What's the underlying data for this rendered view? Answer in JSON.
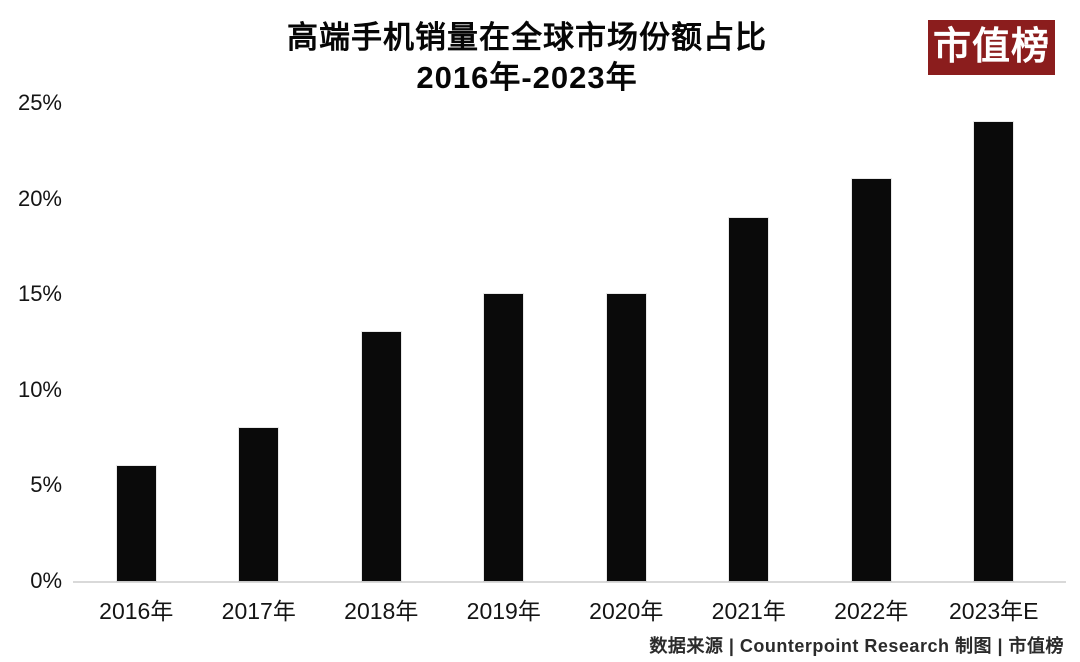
{
  "title": {
    "line1": "高端手机销量在全球市场份额占比",
    "line2": "2016年-2023年"
  },
  "logo": {
    "text": "市值榜",
    "bg_color": "#8b1d1d",
    "text_color": "#ffffff"
  },
  "footer": {
    "text": "数据来源 | Counterpoint Research 制图 | 市值榜"
  },
  "colors": {
    "bar": "#0a0a0a",
    "axis_line": "#d9d9d9",
    "background": "#ffffff"
  },
  "chart_data": {
    "type": "bar",
    "title": "高端手机销量在全球市场份额占比 2016年-2023年",
    "categories": [
      "2016年",
      "2017年",
      "2018年",
      "2019年",
      "2020年",
      "2021年",
      "2022年",
      "2023年E"
    ],
    "values": [
      6,
      8,
      13,
      15,
      15,
      19,
      21,
      24
    ],
    "unit": "%",
    "xlabel": "",
    "ylabel": "",
    "ylim": [
      0,
      25
    ],
    "yticks": [
      {
        "label": "0%",
        "value": 0
      },
      {
        "label": "5%",
        "value": 5
      },
      {
        "label": "10%",
        "value": 10
      },
      {
        "label": "15%",
        "value": 15
      },
      {
        "label": "20%",
        "value": 20
      },
      {
        "label": "25%",
        "value": 25
      }
    ],
    "grid": false,
    "legend": false
  }
}
